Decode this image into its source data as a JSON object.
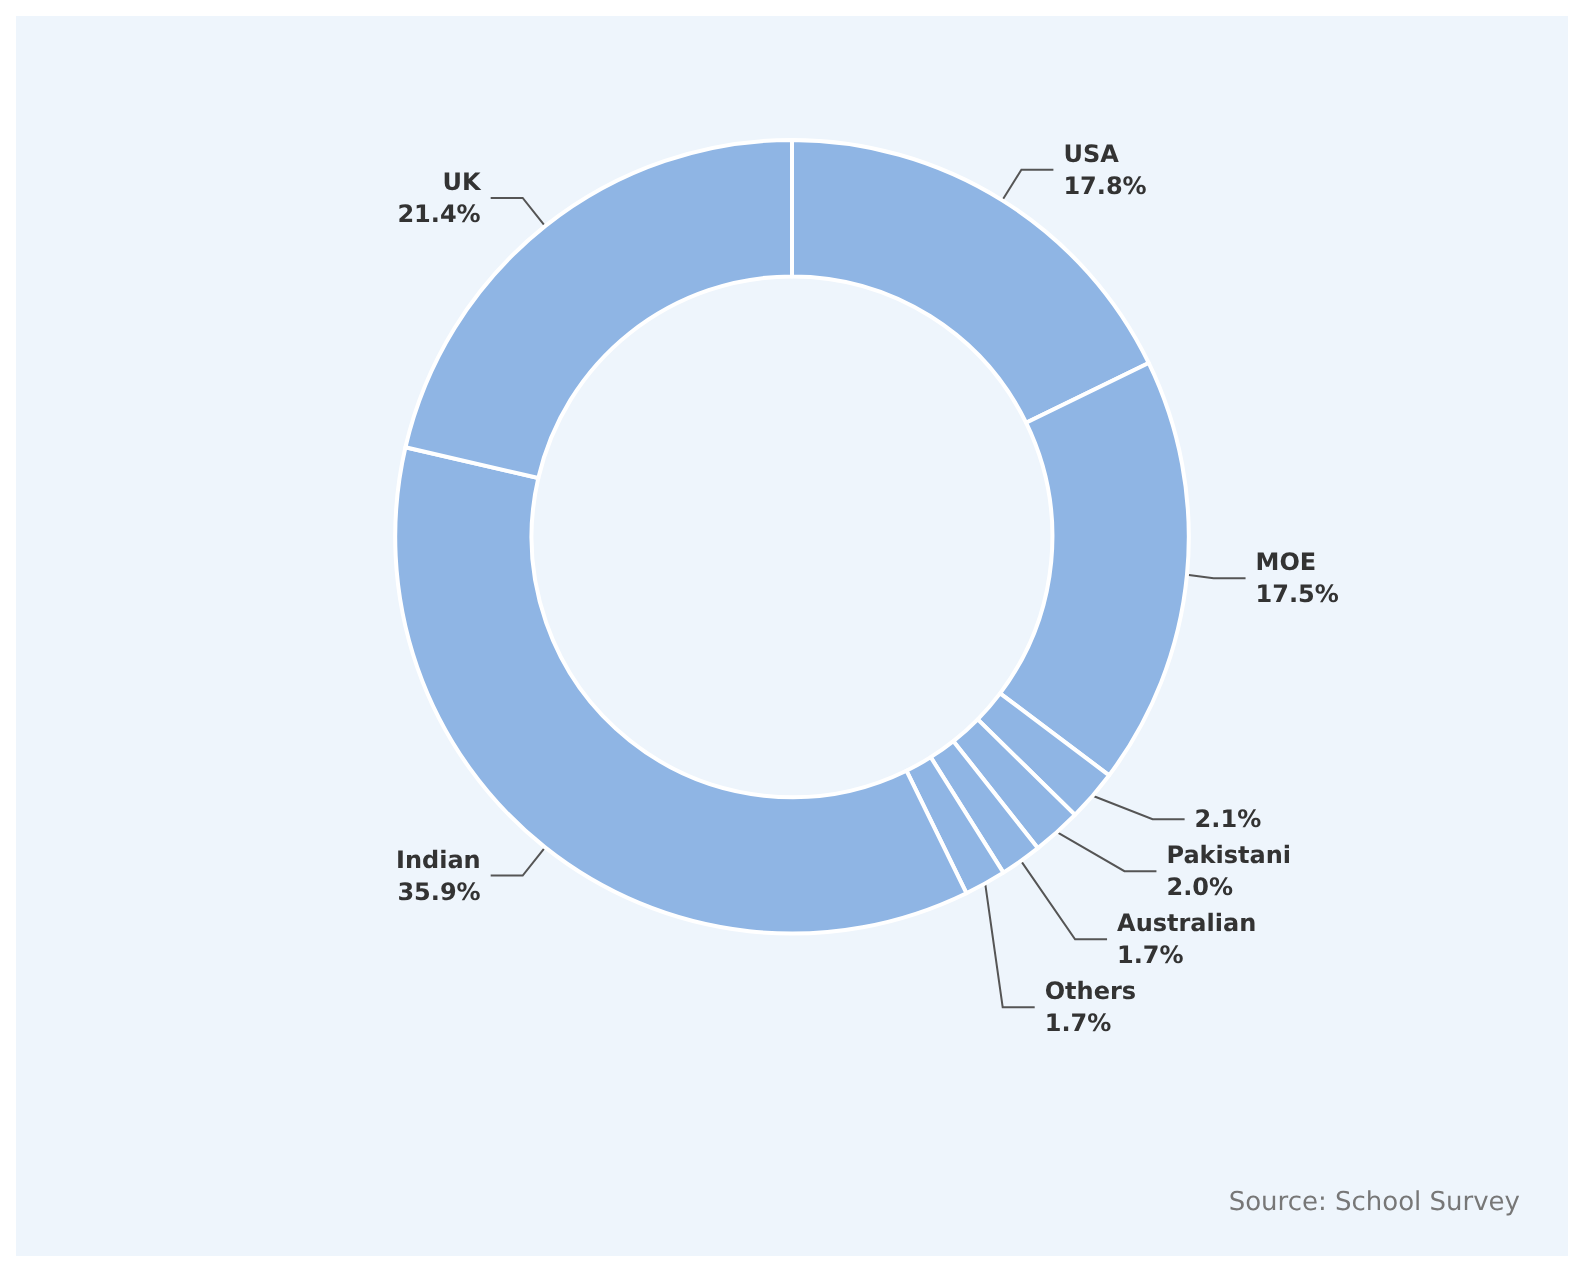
{
  "chart_data": {
    "type": "donut",
    "categories": [
      "USA",
      "MOE",
      null,
      "Pakistani",
      "Australian",
      "Others",
      "Indian",
      "UK"
    ],
    "values": [
      17.8,
      17.5,
      2.1,
      2.0,
      1.7,
      1.7,
      35.9,
      21.4
    ],
    "colors": [
      "#8fb5e4",
      "#8fb5e4",
      "#8fb5e4",
      "#8fb5e4",
      "#8fb5e4",
      "#8fb5e4",
      "#8fb5e4",
      "#8fb5e4"
    ],
    "value_labels": [
      "17.8%",
      "17.5%",
      "2.1%",
      "2.0%",
      "1.7%",
      "1.7%",
      "35.9%",
      "21.4%"
    ],
    "annotations": [
      "Source: School Survey"
    ],
    "legend": false
  }
}
